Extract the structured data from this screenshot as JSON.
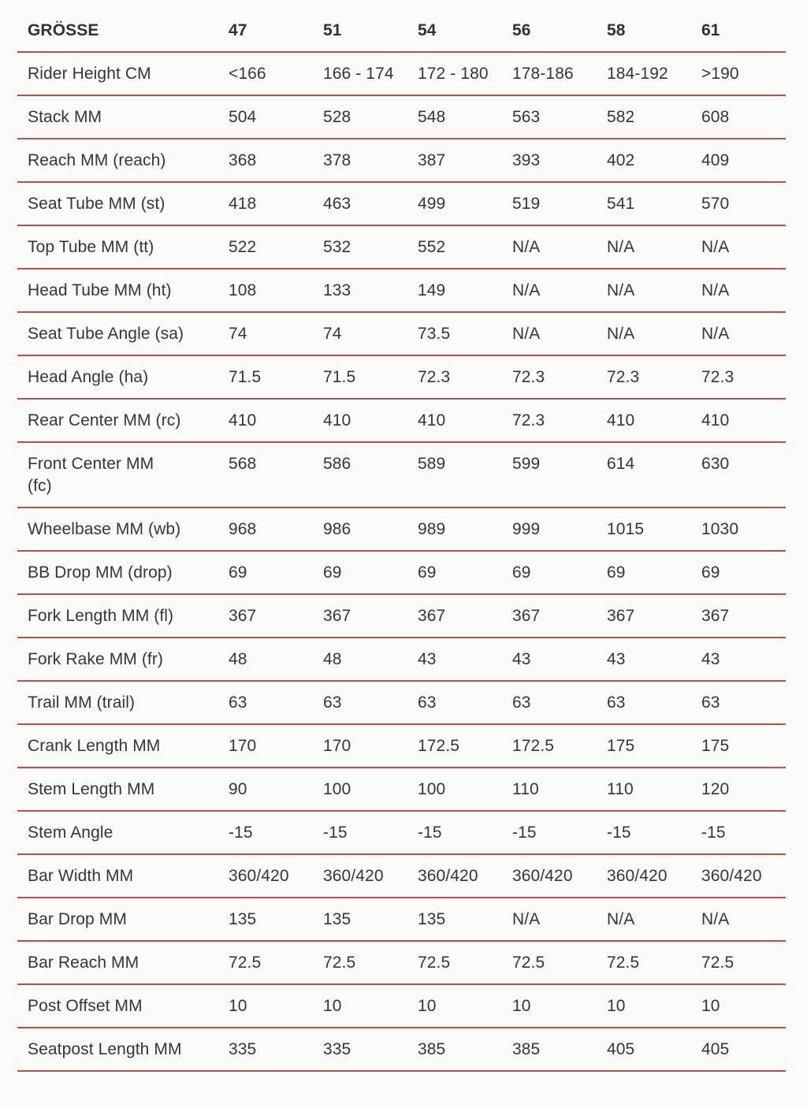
{
  "table": {
    "header": {
      "label": "GRÖSSE",
      "sizes": [
        "47",
        "51",
        "54",
        "56",
        "58",
        "61"
      ]
    },
    "rows": [
      {
        "label": "Rider Height CM",
        "values": [
          "<166",
          "166 - 174",
          "172 - 180",
          "178-186",
          "184-192",
          ">190"
        ]
      },
      {
        "label": "Stack MM",
        "values": [
          "504",
          "528",
          "548",
          "563",
          "582",
          "608"
        ]
      },
      {
        "label": "Reach MM (reach)",
        "values": [
          "368",
          "378",
          "387",
          "393",
          "402",
          "409"
        ]
      },
      {
        "label": "Seat Tube MM (st)",
        "values": [
          "418",
          "463",
          "499",
          "519",
          "541",
          "570"
        ]
      },
      {
        "label": "Top Tube MM (tt)",
        "values": [
          "522",
          "532",
          "552",
          "N/A",
          "N/A",
          "N/A"
        ]
      },
      {
        "label": "Head Tube MM (ht)",
        "values": [
          "108",
          "133",
          "149",
          "N/A",
          "N/A",
          "N/A"
        ]
      },
      {
        "label": "Seat Tube Angle (sa)",
        "values": [
          "74",
          "74",
          "73.5",
          "N/A",
          "N/A",
          "N/A"
        ]
      },
      {
        "label": "Head Angle (ha)",
        "values": [
          "71.5",
          "71.5",
          "72.3",
          "72.3",
          "72.3",
          "72.3"
        ]
      },
      {
        "label": "Rear Center MM (rc)",
        "values": [
          "410",
          "410",
          "410",
          "72.3",
          "410",
          "410"
        ]
      },
      {
        "label": "Front Center MM\n(fc)",
        "values": [
          "568",
          "586",
          "589",
          "599",
          "614",
          "630"
        ]
      },
      {
        "label": "Wheelbase MM (wb)",
        "values": [
          "968",
          "986",
          "989",
          "999",
          "1015",
          "1030"
        ]
      },
      {
        "label": "BB Drop MM (drop)",
        "values": [
          "69",
          "69",
          "69",
          "69",
          "69",
          "69"
        ]
      },
      {
        "label": "Fork Length MM (fl)",
        "values": [
          "367",
          "367",
          "367",
          "367",
          "367",
          "367"
        ]
      },
      {
        "label": "Fork Rake MM (fr)",
        "values": [
          "48",
          "48",
          "43",
          "43",
          "43",
          "43"
        ]
      },
      {
        "label": "Trail MM (trail)",
        "values": [
          "63",
          "63",
          "63",
          "63",
          "63",
          "63"
        ]
      },
      {
        "label": "Crank Length MM",
        "values": [
          "170",
          "170",
          "172.5",
          "172.5",
          "175",
          "175"
        ]
      },
      {
        "label": "Stem Length MM",
        "values": [
          "90",
          "100",
          "100",
          "110",
          "110",
          "120"
        ]
      },
      {
        "label": "Stem Angle",
        "values": [
          "-15",
          "-15",
          "-15",
          "-15",
          "-15",
          "-15"
        ]
      },
      {
        "label": "Bar Width MM",
        "values": [
          "360/420",
          "360/420",
          "360/420",
          "360/420",
          "360/420",
          "360/420"
        ]
      },
      {
        "label": "Bar Drop MM",
        "values": [
          "135",
          "135",
          "135",
          "N/A",
          "N/A",
          "N/A"
        ]
      },
      {
        "label": "Bar Reach MM",
        "values": [
          "72.5",
          "72.5",
          "72.5",
          "72.5",
          "72.5",
          "72.5"
        ]
      },
      {
        "label": "Post Offset MM",
        "values": [
          "10",
          "10",
          "10",
          "10",
          "10",
          "10"
        ]
      },
      {
        "label": "Seatpost Length MM",
        "values": [
          "335",
          "335",
          "385",
          "385",
          "405",
          "405"
        ]
      }
    ]
  },
  "colors": {
    "divider": "#bc4f48",
    "text": "#363636",
    "background": "#fafaf9"
  },
  "chart_data": {
    "type": "table",
    "title": "GRÖSSE",
    "columns": [
      "GRÖSSE",
      "47",
      "51",
      "54",
      "56",
      "58",
      "61"
    ],
    "rows": [
      [
        "Rider Height CM",
        "<166",
        "166 - 174",
        "172 - 180",
        "178-186",
        "184-192",
        ">190"
      ],
      [
        "Stack MM",
        "504",
        "528",
        "548",
        "563",
        "582",
        "608"
      ],
      [
        "Reach MM (reach)",
        "368",
        "378",
        "387",
        "393",
        "402",
        "409"
      ],
      [
        "Seat Tube MM (st)",
        "418",
        "463",
        "499",
        "519",
        "541",
        "570"
      ],
      [
        "Top Tube MM (tt)",
        "522",
        "532",
        "552",
        "N/A",
        "N/A",
        "N/A"
      ],
      [
        "Head Tube MM (ht)",
        "108",
        "133",
        "149",
        "N/A",
        "N/A",
        "N/A"
      ],
      [
        "Seat Tube Angle (sa)",
        "74",
        "74",
        "73.5",
        "N/A",
        "N/A",
        "N/A"
      ],
      [
        "Head Angle (ha)",
        "71.5",
        "71.5",
        "72.3",
        "72.3",
        "72.3",
        "72.3"
      ],
      [
        "Rear Center MM (rc)",
        "410",
        "410",
        "410",
        "72.3",
        "410",
        "410"
      ],
      [
        "Front Center MM (fc)",
        "568",
        "586",
        "589",
        "599",
        "614",
        "630"
      ],
      [
        "Wheelbase MM (wb)",
        "968",
        "986",
        "989",
        "999",
        "1015",
        "1030"
      ],
      [
        "BB Drop MM (drop)",
        "69",
        "69",
        "69",
        "69",
        "69",
        "69"
      ],
      [
        "Fork Length MM (fl)",
        "367",
        "367",
        "367",
        "367",
        "367",
        "367"
      ],
      [
        "Fork Rake MM (fr)",
        "48",
        "48",
        "43",
        "43",
        "43",
        "43"
      ],
      [
        "Trail MM (trail)",
        "63",
        "63",
        "63",
        "63",
        "63",
        "63"
      ],
      [
        "Crank Length MM",
        "170",
        "170",
        "172.5",
        "172.5",
        "175",
        "175"
      ],
      [
        "Stem Length MM",
        "90",
        "100",
        "100",
        "110",
        "110",
        "120"
      ],
      [
        "Stem Angle",
        "-15",
        "-15",
        "-15",
        "-15",
        "-15",
        "-15"
      ],
      [
        "Bar Width MM",
        "360/420",
        "360/420",
        "360/420",
        "360/420",
        "360/420",
        "360/420"
      ],
      [
        "Bar Drop MM",
        "135",
        "135",
        "135",
        "N/A",
        "N/A",
        "N/A"
      ],
      [
        "Bar Reach MM",
        "72.5",
        "72.5",
        "72.5",
        "72.5",
        "72.5",
        "72.5"
      ],
      [
        "Post Offset MM",
        "10",
        "10",
        "10",
        "10",
        "10",
        "10"
      ],
      [
        "Seatpost Length MM",
        "335",
        "335",
        "385",
        "385",
        "405",
        "405"
      ]
    ]
  }
}
